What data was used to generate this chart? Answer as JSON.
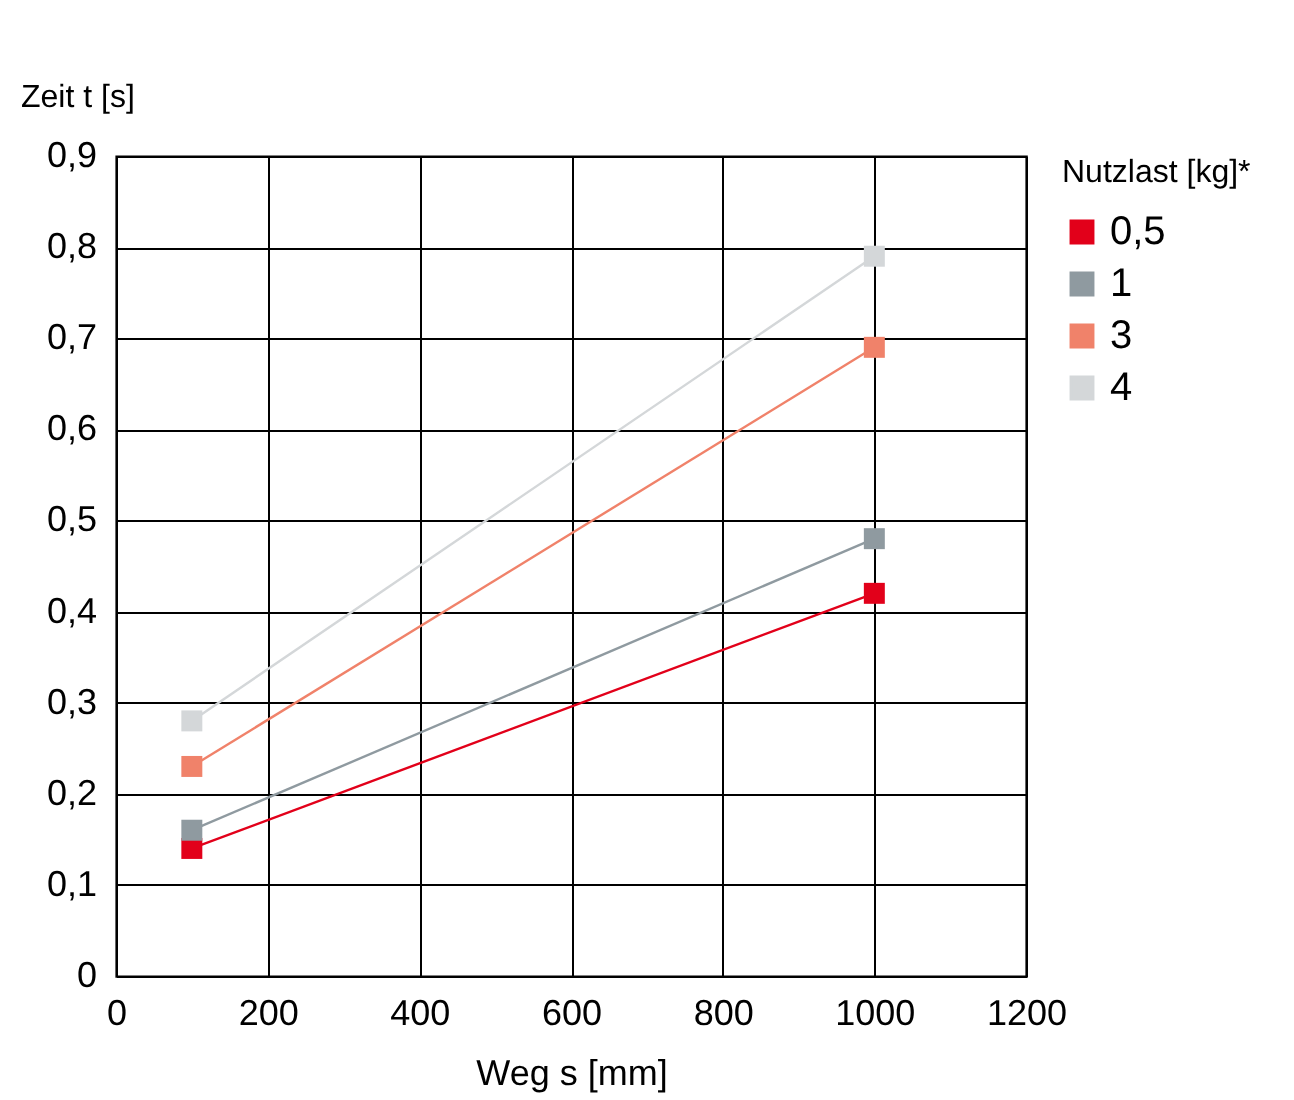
{
  "chart_data": {
    "type": "line",
    "xlabel": "Weg s [mm]",
    "ylabel": "Zeit t [s]",
    "legend_title": "Nutzlast [kg]*",
    "x": [
      100,
      1000
    ],
    "series": [
      {
        "name": "0,5",
        "color": "#e2001a",
        "values": [
          0.14,
          0.42
        ]
      },
      {
        "name": "1",
        "color": "#8f9aa0",
        "values": [
          0.16,
          0.48
        ]
      },
      {
        "name": "3",
        "color": "#f0826a",
        "values": [
          0.23,
          0.69
        ]
      },
      {
        "name": "4",
        "color": "#d4d7d9",
        "values": [
          0.28,
          0.79
        ]
      }
    ],
    "xlim": [
      0,
      1200
    ],
    "xticks": [
      0,
      200,
      400,
      600,
      800,
      1000,
      1200
    ],
    "ylim": [
      0,
      0.9
    ],
    "yticks": [
      {
        "value": 0,
        "label": "0"
      },
      {
        "value": 0.1,
        "label": "0,1"
      },
      {
        "value": 0.2,
        "label": "0,2"
      },
      {
        "value": 0.3,
        "label": "0,3"
      },
      {
        "value": 0.4,
        "label": "0,4"
      },
      {
        "value": 0.5,
        "label": "0,5"
      },
      {
        "value": 0.6,
        "label": "0,6"
      },
      {
        "value": 0.7,
        "label": "0,7"
      },
      {
        "value": 0.8,
        "label": "0,8"
      },
      {
        "value": 0.9,
        "label": "0,9"
      }
    ],
    "grid": true,
    "legend": "top right",
    "marker": "square",
    "line_style": "solid"
  }
}
